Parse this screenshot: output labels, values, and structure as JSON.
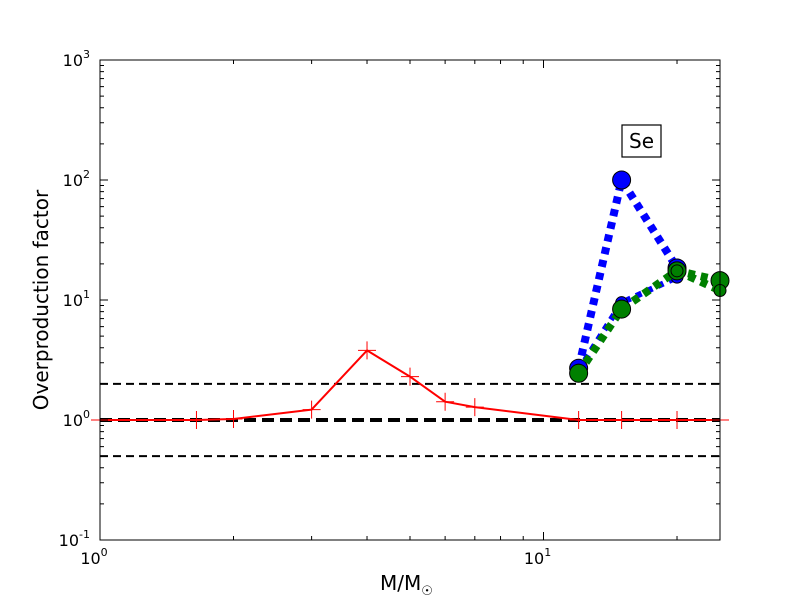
{
  "chart_data": {
    "type": "line",
    "xscale": "log",
    "yscale": "log",
    "xlim": [
      1,
      25
    ],
    "ylim": [
      0.1,
      1000
    ],
    "xlabel": "M/M",
    "xlabel_subscript": "☉",
    "ylabel": "Overproduction factor",
    "annotation": "Se",
    "x_ticks": [
      {
        "base": "10",
        "exp": "0",
        "value": 1
      },
      {
        "base": "10",
        "exp": "1",
        "value": 10
      }
    ],
    "y_ticks": [
      {
        "base": "10",
        "exp": "-1",
        "value": 0.1
      },
      {
        "base": "10",
        "exp": "0",
        "value": 1
      },
      {
        "base": "10",
        "exp": "1",
        "value": 10
      },
      {
        "base": "10",
        "exp": "2",
        "value": 100
      },
      {
        "base": "10",
        "exp": "3",
        "value": 1000
      }
    ],
    "reference_lines": [
      {
        "y": 2.0,
        "style": "dashed",
        "color": "#000000",
        "width": 2
      },
      {
        "y": 1.0,
        "style": "dashed",
        "color": "#000000",
        "width": 4
      },
      {
        "y": 0.5,
        "style": "dashed",
        "color": "#000000",
        "width": 2
      }
    ],
    "series": [
      {
        "color": "#ff0000",
        "line": "solid",
        "marker": "plus",
        "x": [
          1.0,
          1.65,
          2.0,
          3.0,
          4.0,
          5.0,
          6.0,
          7.0,
          12.0,
          15.0,
          20.0,
          25.0
        ],
        "y": [
          1.0,
          1.0,
          1.02,
          1.22,
          3.8,
          2.3,
          1.42,
          1.28,
          1.0,
          1.0,
          1.0,
          1.0
        ]
      },
      {
        "color": "#0000ff",
        "line": "dotted",
        "marker": "circle",
        "x": [
          12.0,
          15.0,
          20.0
        ],
        "y": [
          2.7,
          100.0,
          18.5
        ]
      },
      {
        "color": "#0000ff",
        "line": "dotted-thin",
        "marker": "small-circle",
        "x": [
          12.0,
          15.0,
          20.0
        ],
        "y": [
          2.6,
          9.5,
          15.5
        ]
      },
      {
        "color": "#008000",
        "line": "dotted",
        "marker": "circle",
        "x": [
          12.0,
          15.0,
          20.0,
          25.0
        ],
        "y": [
          2.45,
          8.4,
          17.5,
          14.5
        ]
      },
      {
        "color": "#008000",
        "line": "dotted",
        "marker": "small-circle",
        "x": [
          20.0,
          25.0
        ],
        "y": [
          17.5,
          12.0
        ]
      }
    ]
  }
}
